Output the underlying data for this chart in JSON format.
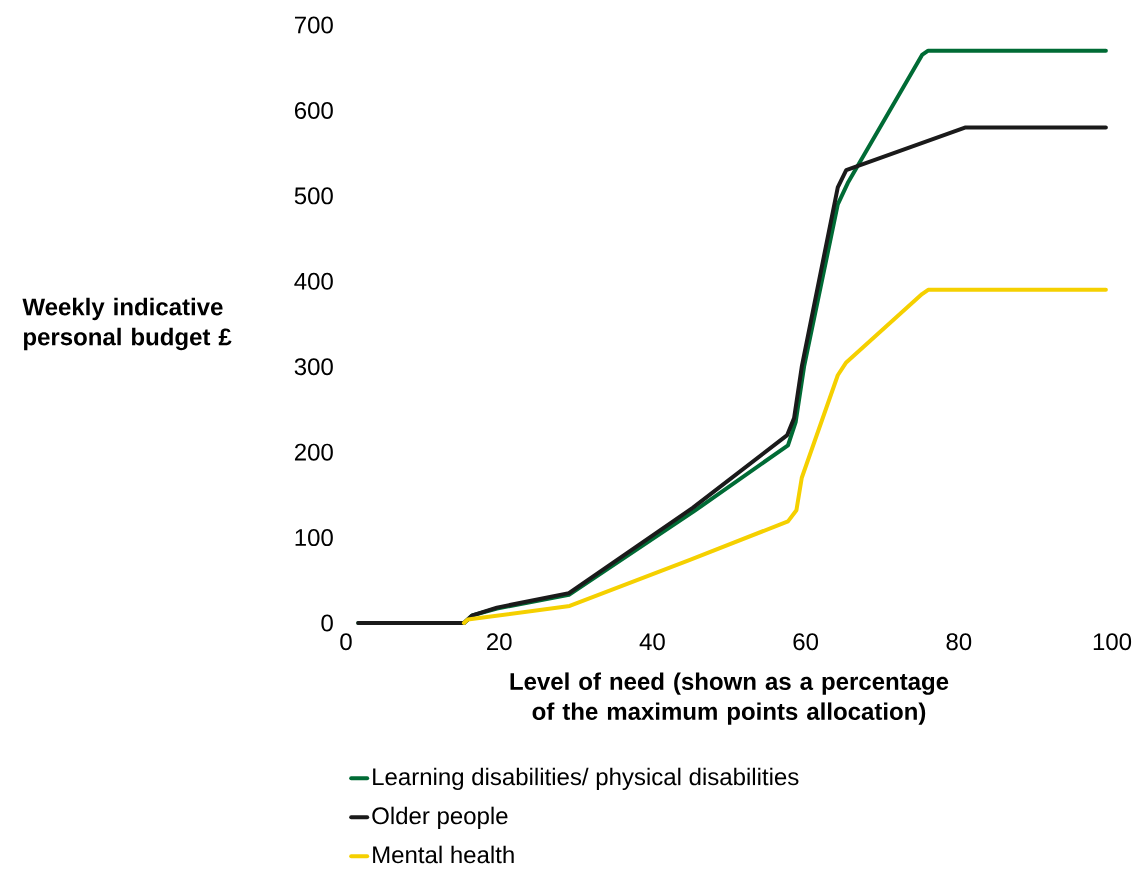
{
  "chart_data": {
    "type": "line",
    "xlabel": "Level of need (shown as a percentage of the maximum points allocation)",
    "ylabel": "Weekly indicative personal budget £",
    "xlim": [
      0,
      100
    ],
    "ylim": [
      0,
      700
    ],
    "xticks": [
      0,
      20,
      40,
      60,
      80,
      100
    ],
    "yticks": [
      0,
      100,
      200,
      300,
      400,
      500,
      600,
      700
    ],
    "legend": "bottom",
    "marker": "none",
    "line_style": "solid",
    "series": [
      {
        "name": "Learning disabilities/ physical disabilities",
        "color": "#006b35",
        "x": [
          1.6,
          15.4,
          16.5,
          19.7,
          29.1,
          45.3,
          57.7,
          58.7,
          59.8,
          64.2,
          65.5,
          75.2,
          76,
          99.2
        ],
        "values": [
          0,
          0,
          9,
          17,
          33,
          130,
          208,
          235,
          300,
          490,
          515,
          665,
          670,
          670
        ]
      },
      {
        "name": "Older people",
        "color": "#1a1a1a",
        "x": [
          1.6,
          15.4,
          16.5,
          19.7,
          29.1,
          45.3,
          57.6,
          58.5,
          59.5,
          64.2,
          65.3,
          80.8,
          99.2
        ],
        "values": [
          0,
          0,
          9,
          18,
          35,
          135,
          220,
          240,
          300,
          510,
          530,
          580,
          580
        ]
      },
      {
        "name": "Mental health",
        "color": "#f5d000",
        "x": [
          15.4,
          15.9,
          29.2,
          44.9,
          57.7,
          58.8,
          59.5,
          64.2,
          65.3,
          75.2,
          76,
          99.2
        ],
        "values": [
          0,
          4,
          20,
          74,
          119,
          132,
          170,
          290,
          305,
          385,
          390,
          390
        ]
      }
    ]
  }
}
